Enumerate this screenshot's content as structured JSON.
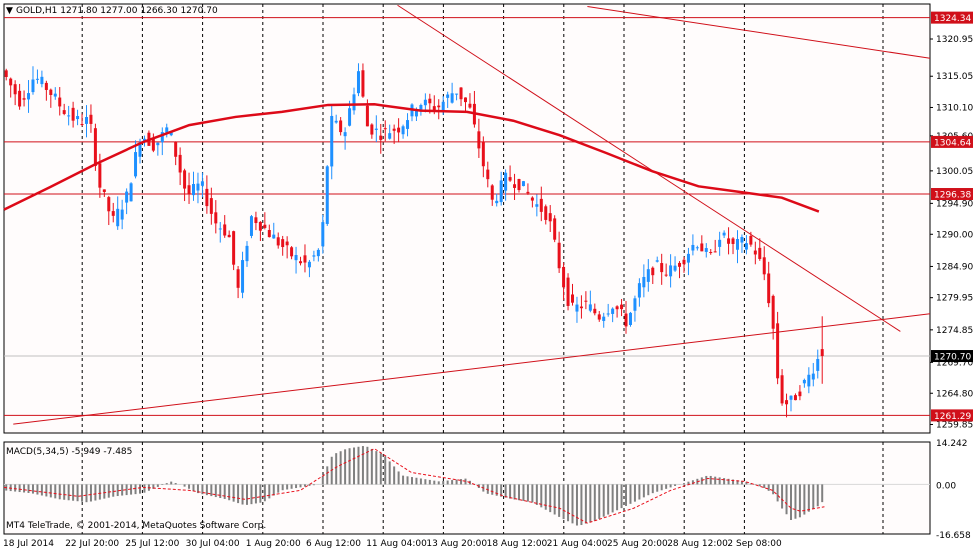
{
  "header": {
    "arrow": "▼",
    "symbol_text": "GOLD,H1  1271.80 1277.00 1266.30 1270.70"
  },
  "macd": {
    "label": "MACD(5,34,5) -5.949 -7.485"
  },
  "copyright": "MT4 TeleTrade, © 2001-2014, MetaQuotes Software Corp.",
  "colors": {
    "background": "#fffcfc",
    "bull": "#1e90ff",
    "bear": "#e8101b",
    "ma": "#dd0a18",
    "line": "#d0101a",
    "histogram": "#808080",
    "signal": "#e8101b"
  },
  "chart_data": [
    {
      "type": "candlestick",
      "symbol": "GOLD",
      "timeframe": "H1",
      "last": {
        "open": 1271.8,
        "high": 1277.0,
        "low": 1266.3,
        "close": 1270.7
      },
      "ylim": [
        1258.5,
        1326.5
      ],
      "y_ticks": [
        "1320.95",
        "1315.05",
        "1310.10",
        "1305.60",
        "1300.05",
        "1294.90",
        "1290.00",
        "1284.90",
        "1279.95",
        "1274.85",
        "1269.70",
        "1264.80",
        "1259.85"
      ],
      "x_ticks": [
        "18 Jul 2014",
        "22 Jul 20:00",
        "25 Jul 12:00",
        "30 Jul 04:00",
        "1 Aug 20:00",
        "6 Aug 12:00",
        "11 Aug 04:00",
        "13 Aug 20:00",
        "18 Aug 12:00",
        "21 Aug 04:00",
        "25 Aug 20:00",
        "28 Aug 12:00",
        "2 Sep 08:00"
      ],
      "price_labels": [
        {
          "text": "1324.34",
          "value": 1324.34
        },
        {
          "text": "1304.64",
          "value": 1304.64
        },
        {
          "text": "1296.38",
          "value": 1296.38
        },
        {
          "text": "1270.70",
          "value": 1270.7
        },
        {
          "text": "1261.29",
          "value": 1261.29
        }
      ],
      "horizontal_levels": [
        1324.34,
        1304.64,
        1296.38,
        1261.29
      ],
      "trend_lines": [
        {
          "from": [
            0.01,
            1259.9
          ],
          "to": [
            1.0,
            1277.4
          ]
        },
        {
          "from": [
            0.425,
            1326.3
          ],
          "to": [
            0.968,
            1274.6
          ]
        },
        {
          "from": [
            0.63,
            1326.1
          ],
          "to": [
            1.0,
            1317.9
          ]
        }
      ],
      "moving_average": [
        [
          0.0,
          1293.9
        ],
        [
          0.05,
          1297.5
        ],
        [
          0.1,
          1301.2
        ],
        [
          0.15,
          1304.6
        ],
        [
          0.2,
          1307.3
        ],
        [
          0.25,
          1308.6
        ],
        [
          0.3,
          1309.4
        ],
        [
          0.35,
          1310.5
        ],
        [
          0.4,
          1310.6
        ],
        [
          0.45,
          1309.6
        ],
        [
          0.5,
          1309.4
        ],
        [
          0.55,
          1308.0
        ],
        [
          0.6,
          1305.7
        ],
        [
          0.65,
          1302.9
        ],
        [
          0.7,
          1300.0
        ],
        [
          0.75,
          1297.6
        ],
        [
          0.8,
          1296.6
        ],
        [
          0.84,
          1295.8
        ],
        [
          0.88,
          1293.6
        ]
      ],
      "price_path": [
        [
          0.0,
          1316
        ],
        [
          0.02,
          1311
        ],
        [
          0.035,
          1315
        ],
        [
          0.05,
          1313
        ],
        [
          0.065,
          1310
        ],
        [
          0.08,
          1308
        ],
        [
          0.095,
          1308
        ],
        [
          0.105,
          1298
        ],
        [
          0.12,
          1292
        ],
        [
          0.135,
          1296
        ],
        [
          0.15,
          1306
        ],
        [
          0.165,
          1304
        ],
        [
          0.18,
          1307
        ],
        [
          0.2,
          1296
        ],
        [
          0.215,
          1298
        ],
        [
          0.23,
          1292
        ],
        [
          0.245,
          1290
        ],
        [
          0.255,
          1281
        ],
        [
          0.27,
          1293
        ],
        [
          0.29,
          1290
        ],
        [
          0.31,
          1287
        ],
        [
          0.33,
          1285
        ],
        [
          0.345,
          1288
        ],
        [
          0.355,
          1308
        ],
        [
          0.37,
          1306
        ],
        [
          0.385,
          1316
        ],
        [
          0.395,
          1307
        ],
        [
          0.41,
          1306
        ],
        [
          0.43,
          1307
        ],
        [
          0.45,
          1311
        ],
        [
          0.47,
          1310
        ],
        [
          0.49,
          1313
        ],
        [
          0.505,
          1310
        ],
        [
          0.515,
          1304
        ],
        [
          0.53,
          1295
        ],
        [
          0.545,
          1299
        ],
        [
          0.56,
          1298
        ],
        [
          0.575,
          1295
        ],
        [
          0.59,
          1293
        ],
        [
          0.605,
          1283
        ],
        [
          0.615,
          1278
        ],
        [
          0.63,
          1279
        ],
        [
          0.645,
          1277
        ],
        [
          0.66,
          1279
        ],
        [
          0.675,
          1276
        ],
        [
          0.69,
          1282
        ],
        [
          0.705,
          1285
        ],
        [
          0.72,
          1284
        ],
        [
          0.735,
          1286
        ],
        [
          0.75,
          1289
        ],
        [
          0.765,
          1286
        ],
        [
          0.775,
          1290
        ],
        [
          0.79,
          1288
        ],
        [
          0.805,
          1289
        ],
        [
          0.815,
          1287
        ],
        [
          0.825,
          1283
        ],
        [
          0.833,
          1275
        ],
        [
          0.84,
          1264
        ],
        [
          0.85,
          1263
        ],
        [
          0.86,
          1265
        ],
        [
          0.87,
          1267
        ],
        [
          0.88,
          1270
        ],
        [
          0.886,
          1270.7
        ]
      ]
    },
    {
      "type": "histogram",
      "name": "MACD(5,34,5)",
      "macd": -5.949,
      "signal": -7.485,
      "ylim": [
        -16.658,
        14.242
      ],
      "y_ticks": [
        "14.242",
        "0.00",
        "-16.658"
      ],
      "hist_path": [
        [
          0.0,
          -2
        ],
        [
          0.03,
          -3
        ],
        [
          0.06,
          -5
        ],
        [
          0.09,
          -6
        ],
        [
          0.12,
          -4
        ],
        [
          0.15,
          -3
        ],
        [
          0.18,
          1
        ],
        [
          0.19,
          0
        ],
        [
          0.21,
          -3
        ],
        [
          0.24,
          -5
        ],
        [
          0.26,
          -7
        ],
        [
          0.28,
          -6
        ],
        [
          0.3,
          -2
        ],
        [
          0.32,
          -1
        ],
        [
          0.34,
          0
        ],
        [
          0.355,
          10
        ],
        [
          0.37,
          12
        ],
        [
          0.39,
          13
        ],
        [
          0.41,
          10
        ],
        [
          0.43,
          3
        ],
        [
          0.45,
          2
        ],
        [
          0.47,
          1
        ],
        [
          0.5,
          2
        ],
        [
          0.52,
          -3
        ],
        [
          0.55,
          -5
        ],
        [
          0.57,
          -6
        ],
        [
          0.6,
          -11
        ],
        [
          0.62,
          -14
        ],
        [
          0.64,
          -12
        ],
        [
          0.66,
          -9
        ],
        [
          0.68,
          -6
        ],
        [
          0.7,
          -3
        ],
        [
          0.72,
          -1
        ],
        [
          0.74,
          1
        ],
        [
          0.76,
          3
        ],
        [
          0.78,
          2
        ],
        [
          0.8,
          1
        ],
        [
          0.82,
          -1
        ],
        [
          0.83,
          -3
        ],
        [
          0.84,
          -8
        ],
        [
          0.85,
          -12
        ],
        [
          0.86,
          -11
        ],
        [
          0.87,
          -9
        ],
        [
          0.886,
          -6
        ]
      ],
      "signal_path": [
        [
          0.0,
          -1
        ],
        [
          0.08,
          -4
        ],
        [
          0.15,
          -1
        ],
        [
          0.2,
          -2
        ],
        [
          0.26,
          -5
        ],
        [
          0.32,
          -2
        ],
        [
          0.36,
          6
        ],
        [
          0.4,
          12
        ],
        [
          0.44,
          4
        ],
        [
          0.5,
          1
        ],
        [
          0.54,
          -4
        ],
        [
          0.6,
          -8
        ],
        [
          0.63,
          -13
        ],
        [
          0.68,
          -8
        ],
        [
          0.72,
          -2
        ],
        [
          0.76,
          2
        ],
        [
          0.8,
          1
        ],
        [
          0.83,
          -2
        ],
        [
          0.85,
          -8
        ],
        [
          0.86,
          -9
        ],
        [
          0.886,
          -7.5
        ]
      ]
    }
  ]
}
